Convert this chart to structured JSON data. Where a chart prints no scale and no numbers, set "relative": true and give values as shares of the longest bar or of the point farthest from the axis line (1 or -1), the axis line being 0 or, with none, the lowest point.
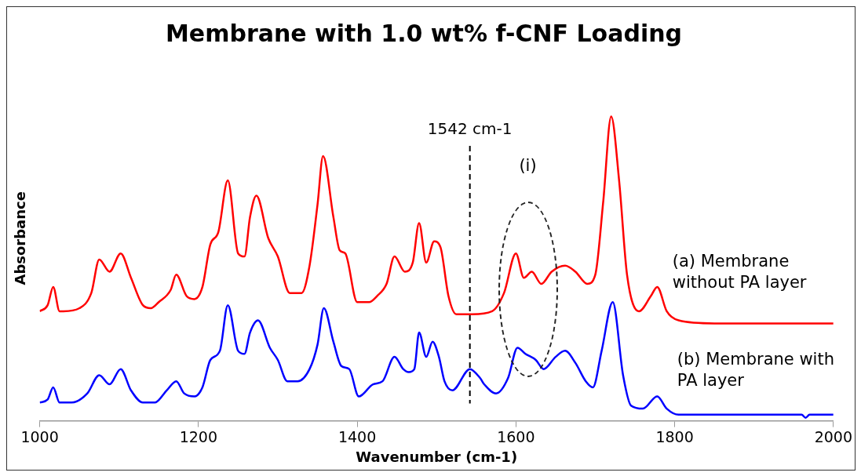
{
  "chart_data": {
    "type": "line",
    "title": "Membrane with 1.0 wt% f-CNF Loading",
    "xlabel": "Wavenumber (cm-1)",
    "ylabel": "Absorbance",
    "relative": true,
    "xlim": [
      1000,
      2000
    ],
    "xticks": [
      1000,
      1200,
      1400,
      1600,
      1800,
      2000
    ],
    "grid": false,
    "legend": false,
    "marker": "none",
    "line_style": "solid",
    "series": [
      {
        "name": "(a) Membrane without PA layer",
        "color": "#ff0000",
        "x": [
          1000,
          1010,
          1017,
          1025,
          1030,
          1050,
          1065,
          1075,
          1088,
          1102,
          1115,
          1130,
          1140,
          1150,
          1165,
          1172,
          1185,
          1195,
          1205,
          1215,
          1225,
          1237,
          1250,
          1258,
          1265,
          1273,
          1288,
          1300,
          1315,
          1330,
          1340,
          1350,
          1357,
          1370,
          1378,
          1385,
          1400,
          1415,
          1425,
          1437,
          1447,
          1460,
          1470,
          1478,
          1487,
          1497,
          1505,
          1515,
          1525,
          1545,
          1570,
          1585,
          1600,
          1610,
          1620,
          1632,
          1645,
          1662,
          1675,
          1690,
          1700,
          1710,
          1720,
          1730,
          1740,
          1755,
          1770,
          1778,
          1790,
          1805,
          1850,
          1900,
          2000
        ],
        "values": [
          0.36,
          0.38,
          0.44,
          0.36,
          0.36,
          0.37,
          0.42,
          0.53,
          0.49,
          0.55,
          0.47,
          0.38,
          0.37,
          0.39,
          0.43,
          0.48,
          0.41,
          0.4,
          0.44,
          0.58,
          0.62,
          0.79,
          0.55,
          0.54,
          0.67,
          0.74,
          0.6,
          0.54,
          0.42,
          0.42,
          0.51,
          0.71,
          0.87,
          0.67,
          0.56,
          0.55,
          0.39,
          0.39,
          0.41,
          0.45,
          0.54,
          0.49,
          0.52,
          0.65,
          0.52,
          0.59,
          0.57,
          0.41,
          0.35,
          0.35,
          0.36,
          0.42,
          0.55,
          0.47,
          0.49,
          0.45,
          0.49,
          0.51,
          0.49,
          0.45,
          0.48,
          0.72,
          1.0,
          0.79,
          0.48,
          0.36,
          0.41,
          0.44,
          0.36,
          0.33,
          0.32,
          0.32,
          0.32
        ]
      },
      {
        "name": "(b) Membrane with PA layer",
        "color": "#0000ff",
        "x": [
          1000,
          1010,
          1017,
          1025,
          1040,
          1060,
          1075,
          1088,
          1102,
          1115,
          1130,
          1145,
          1160,
          1172,
          1182,
          1195,
          1205,
          1215,
          1227,
          1237,
          1250,
          1258,
          1265,
          1275,
          1290,
          1300,
          1312,
          1325,
          1340,
          1350,
          1358,
          1370,
          1380,
          1390,
          1402,
          1420,
          1432,
          1447,
          1458,
          1465,
          1472,
          1478,
          1487,
          1495,
          1503,
          1510,
          1520,
          1542,
          1555,
          1560,
          1575,
          1590,
          1602,
          1612,
          1625,
          1635,
          1650,
          1662,
          1675,
          1688,
          1697,
          1708,
          1722,
          1735,
          1745,
          1760,
          1778,
          1790,
          1805,
          1900,
          1960,
          1965,
          1970,
          2000
        ],
        "values": [
          0.06,
          0.07,
          0.11,
          0.06,
          0.06,
          0.09,
          0.15,
          0.12,
          0.17,
          0.1,
          0.06,
          0.06,
          0.1,
          0.13,
          0.09,
          0.08,
          0.11,
          0.2,
          0.23,
          0.38,
          0.23,
          0.22,
          0.29,
          0.33,
          0.24,
          0.2,
          0.13,
          0.13,
          0.17,
          0.25,
          0.37,
          0.26,
          0.18,
          0.17,
          0.08,
          0.12,
          0.13,
          0.21,
          0.17,
          0.16,
          0.17,
          0.29,
          0.21,
          0.26,
          0.21,
          0.13,
          0.1,
          0.17,
          0.14,
          0.12,
          0.09,
          0.14,
          0.24,
          0.22,
          0.2,
          0.17,
          0.21,
          0.23,
          0.19,
          0.13,
          0.11,
          0.23,
          0.39,
          0.15,
          0.05,
          0.04,
          0.08,
          0.04,
          0.02,
          0.02,
          0.02,
          0.01,
          0.02,
          0.02
        ]
      }
    ],
    "ref_lines": [
      {
        "axis": "x",
        "value": 1542,
        "label": "1542 cm-1",
        "color": "#000000",
        "line_style": "dashed"
      }
    ],
    "annotations": [
      "(i)"
    ]
  }
}
